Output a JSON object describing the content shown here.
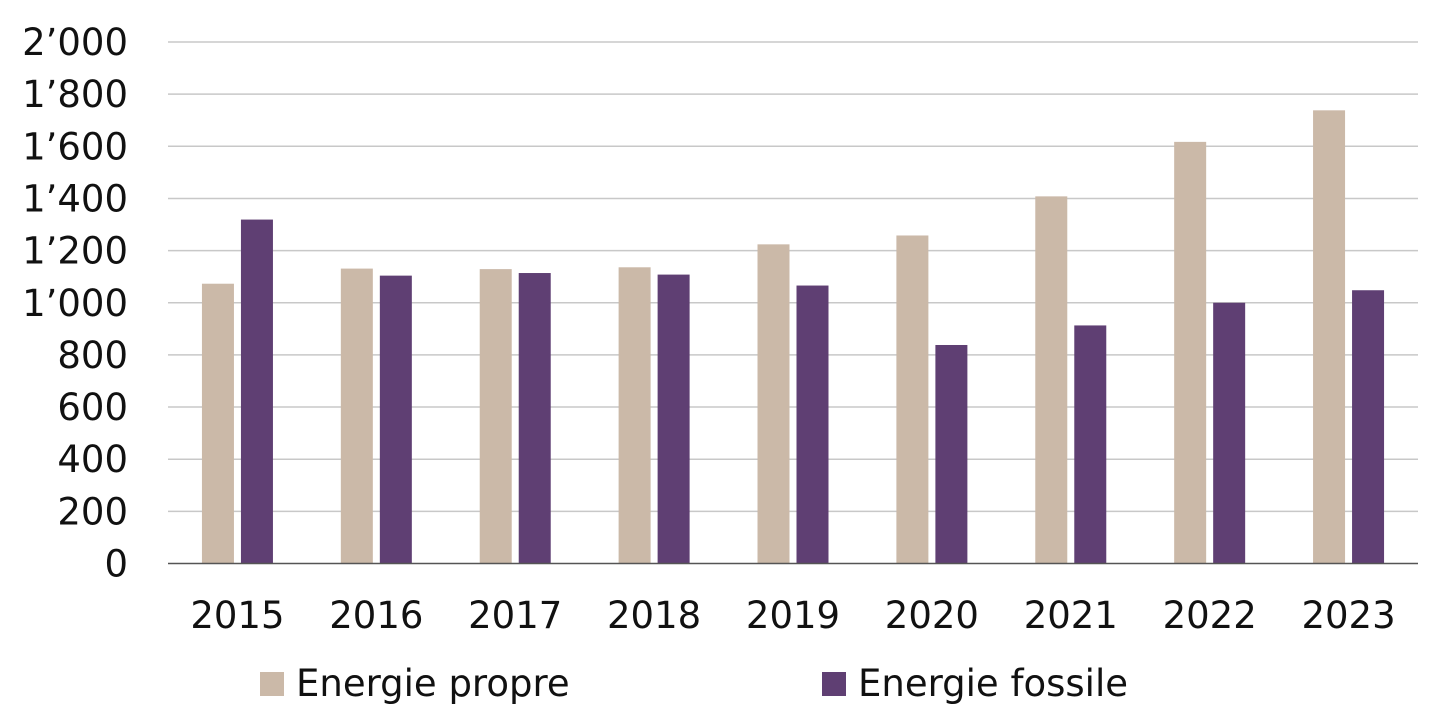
{
  "chart_data": {
    "type": "bar",
    "title": "",
    "xlabel": "",
    "ylabel": "",
    "categories": [
      "2015",
      "2016",
      "2017",
      "2018",
      "2019",
      "2020",
      "2021",
      "2022",
      "2023"
    ],
    "series": [
      {
        "name": "Energie propre",
        "color": "#CBB9A8",
        "values": [
          1073,
          1131,
          1129,
          1136,
          1224,
          1258,
          1408,
          1617,
          1738
        ]
      },
      {
        "name": "Energie fossile",
        "color": "#5F3F73",
        "values": [
          1319,
          1104,
          1114,
          1108,
          1066,
          838,
          913,
          1000,
          1048
        ]
      }
    ],
    "ylim": [
      0,
      2000
    ],
    "yticks": [
      0,
      200,
      400,
      600,
      800,
      1000,
      1200,
      1400,
      1600,
      1800,
      2000
    ],
    "ytick_labels": [
      "0",
      "200",
      "400",
      "600",
      "800",
      "1’000",
      "1’200",
      "1’400",
      "1’600",
      "1’800",
      "2’000"
    ],
    "grid": true,
    "legend_position": "bottom"
  }
}
